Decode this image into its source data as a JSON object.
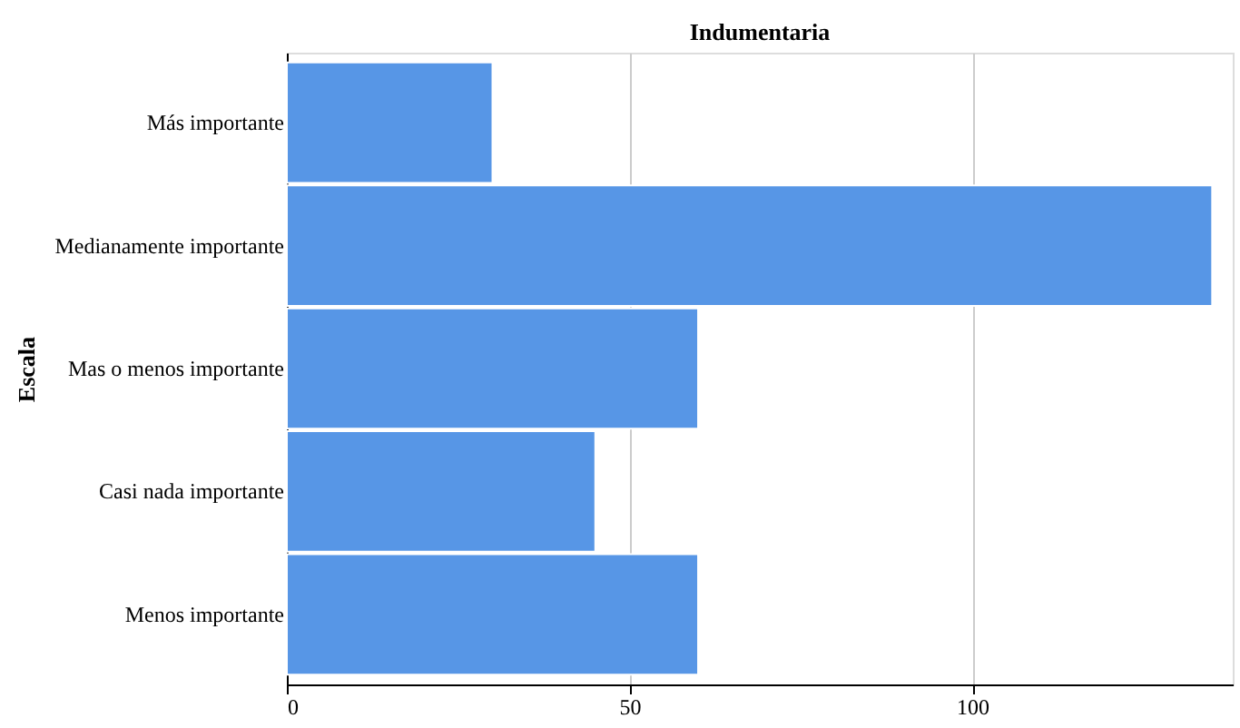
{
  "chart_data": {
    "type": "bar",
    "orientation": "horizontal",
    "title": "Indumentaria",
    "ylabel": "Escala",
    "categories": [
      "Más importante",
      "Medianamente importante",
      "Mas o menos importante",
      "Casi nada importante",
      "Menos importante"
    ],
    "values": [
      30,
      135,
      60,
      45,
      60
    ],
    "color": "#5796e6",
    "xlim": [
      0,
      138
    ],
    "xticks": [
      0,
      50,
      100
    ],
    "grid": "x"
  }
}
